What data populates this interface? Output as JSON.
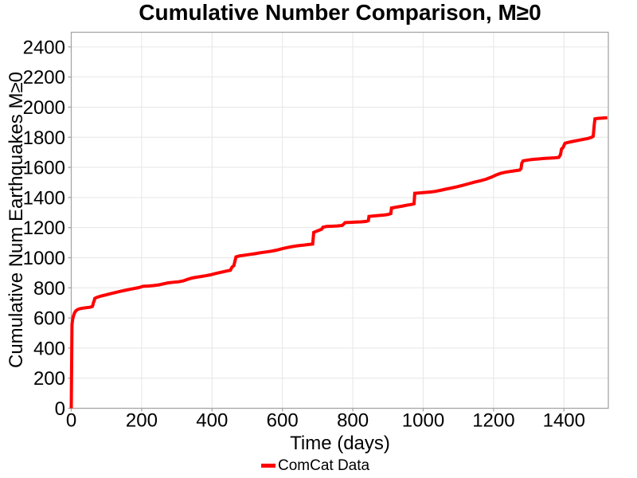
{
  "chart_data": {
    "type": "line",
    "title": "Cumulative Number Comparison, M≥0",
    "xlabel": "Time (days)",
    "ylabel": "Cumulative Num Earthquakes M≥0",
    "xlim": [
      0,
      1526
    ],
    "ylim": [
      0,
      2497
    ],
    "xticks": [
      0,
      200,
      400,
      600,
      800,
      1000,
      1200,
      1400
    ],
    "yticks": [
      0,
      200,
      400,
      600,
      800,
      1000,
      1200,
      1400,
      1600,
      1800,
      2000,
      2200,
      2400
    ],
    "grid": true,
    "legend_position": "bottom-center",
    "colors": {
      "background": "#ffffff",
      "grid": "#e6e6e6",
      "frame": "#a6a6a6",
      "text": "#000000",
      "series_red": "#ff0000"
    },
    "series": [
      {
        "name": "ComCat Data",
        "color": "#ff0000",
        "line_width": 4,
        "points": [
          [
            0,
            0
          ],
          [
            2,
            556
          ],
          [
            4,
            592
          ],
          [
            6,
            612
          ],
          [
            9,
            632
          ],
          [
            13,
            647
          ],
          [
            18,
            656
          ],
          [
            25,
            662
          ],
          [
            33,
            665
          ],
          [
            43,
            668
          ],
          [
            53,
            671
          ],
          [
            60,
            676
          ],
          [
            62,
            690
          ],
          [
            63,
            702
          ],
          [
            65,
            712
          ],
          [
            67,
            730
          ],
          [
            73,
            737
          ],
          [
            85,
            746
          ],
          [
            98,
            753
          ],
          [
            110,
            760
          ],
          [
            124,
            768
          ],
          [
            138,
            776
          ],
          [
            152,
            783
          ],
          [
            166,
            790
          ],
          [
            180,
            796
          ],
          [
            193,
            802
          ],
          [
            204,
            810
          ],
          [
            220,
            812
          ],
          [
            235,
            815
          ],
          [
            250,
            820
          ],
          [
            263,
            827
          ],
          [
            276,
            833
          ],
          [
            290,
            837
          ],
          [
            305,
            840
          ],
          [
            318,
            846
          ],
          [
            330,
            856
          ],
          [
            343,
            865
          ],
          [
            355,
            870
          ],
          [
            368,
            875
          ],
          [
            381,
            880
          ],
          [
            395,
            886
          ],
          [
            410,
            895
          ],
          [
            425,
            903
          ],
          [
            440,
            911
          ],
          [
            452,
            917
          ],
          [
            457,
            938
          ],
          [
            462,
            947
          ],
          [
            465,
            976
          ],
          [
            468,
            1005
          ],
          [
            478,
            1012
          ],
          [
            493,
            1017
          ],
          [
            508,
            1022
          ],
          [
            523,
            1027
          ],
          [
            538,
            1033
          ],
          [
            553,
            1038
          ],
          [
            568,
            1043
          ],
          [
            583,
            1050
          ],
          [
            598,
            1059
          ],
          [
            613,
            1067
          ],
          [
            628,
            1074
          ],
          [
            643,
            1079
          ],
          [
            658,
            1083
          ],
          [
            672,
            1087
          ],
          [
            686,
            1091
          ],
          [
            689,
            1168
          ],
          [
            697,
            1176
          ],
          [
            705,
            1183
          ],
          [
            712,
            1190
          ],
          [
            715,
            1202
          ],
          [
            725,
            1207
          ],
          [
            740,
            1209
          ],
          [
            755,
            1211
          ],
          [
            770,
            1214
          ],
          [
            775,
            1225
          ],
          [
            778,
            1233
          ],
          [
            793,
            1235
          ],
          [
            808,
            1237
          ],
          [
            823,
            1238
          ],
          [
            838,
            1241
          ],
          [
            844,
            1246
          ],
          [
            846,
            1274
          ],
          [
            858,
            1277
          ],
          [
            873,
            1280
          ],
          [
            888,
            1283
          ],
          [
            900,
            1287
          ],
          [
            908,
            1293
          ],
          [
            910,
            1330
          ],
          [
            922,
            1335
          ],
          [
            937,
            1341
          ],
          [
            952,
            1348
          ],
          [
            967,
            1354
          ],
          [
            974,
            1358
          ],
          [
            976,
            1428
          ],
          [
            988,
            1430
          ],
          [
            1003,
            1433
          ],
          [
            1018,
            1436
          ],
          [
            1033,
            1440
          ],
          [
            1048,
            1447
          ],
          [
            1063,
            1455
          ],
          [
            1080,
            1463
          ],
          [
            1097,
            1472
          ],
          [
            1114,
            1482
          ],
          [
            1130,
            1492
          ],
          [
            1146,
            1502
          ],
          [
            1162,
            1511
          ],
          [
            1178,
            1521
          ],
          [
            1194,
            1535
          ],
          [
            1208,
            1550
          ],
          [
            1220,
            1560
          ],
          [
            1232,
            1567
          ],
          [
            1246,
            1572
          ],
          [
            1260,
            1577
          ],
          [
            1274,
            1582
          ],
          [
            1278,
            1592
          ],
          [
            1280,
            1628
          ],
          [
            1284,
            1643
          ],
          [
            1298,
            1649
          ],
          [
            1313,
            1653
          ],
          [
            1328,
            1656
          ],
          [
            1343,
            1659
          ],
          [
            1358,
            1661
          ],
          [
            1373,
            1663
          ],
          [
            1385,
            1666
          ],
          [
            1390,
            1684
          ],
          [
            1393,
            1722
          ],
          [
            1398,
            1733
          ],
          [
            1400,
            1746
          ],
          [
            1403,
            1760
          ],
          [
            1410,
            1765
          ],
          [
            1425,
            1772
          ],
          [
            1440,
            1779
          ],
          [
            1455,
            1786
          ],
          [
            1468,
            1792
          ],
          [
            1478,
            1799
          ],
          [
            1483,
            1806
          ],
          [
            1486,
            1882
          ],
          [
            1488,
            1922
          ],
          [
            1496,
            1925
          ],
          [
            1508,
            1927
          ],
          [
            1523,
            1930
          ]
        ]
      }
    ]
  }
}
